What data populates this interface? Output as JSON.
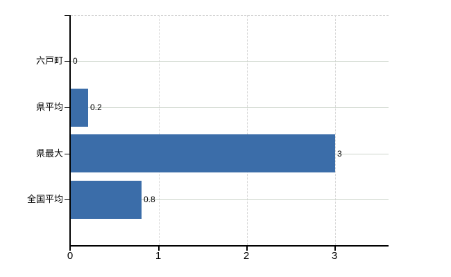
{
  "chart_data": {
    "type": "bar",
    "orientation": "horizontal",
    "categories": [
      "六戸町",
      "県平均",
      "県最大",
      "全国平均"
    ],
    "values": [
      0,
      0.2,
      3,
      0.8
    ],
    "value_labels": [
      "0",
      "0.2",
      "3",
      "0.8"
    ],
    "x_tick_labels": [
      "0",
      "1",
      "2",
      "3"
    ],
    "x_tick_values": [
      0,
      1,
      2,
      3
    ],
    "xlim": [
      0,
      3.6
    ],
    "grid": true,
    "legend_position": "none",
    "colors": {
      "bar": "#3b6da9",
      "h_gridline": "#ccd5cb",
      "v_gridline": "#d6d6d6",
      "plot_top_border": "#cfcfcf",
      "axis": "#000000",
      "text": "#000000",
      "background": "#ffffff"
    }
  }
}
